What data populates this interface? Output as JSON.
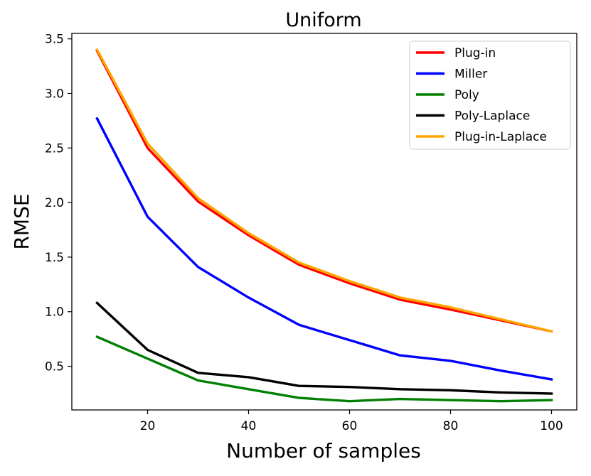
{
  "chart_data": {
    "type": "line",
    "title": "Uniform",
    "xlabel": "Number of samples",
    "ylabel": "RMSE",
    "x": [
      10,
      20,
      30,
      40,
      50,
      60,
      70,
      80,
      90,
      100
    ],
    "xlim": [
      5,
      105
    ],
    "ylim": [
      0.1,
      3.55
    ],
    "xticks": [
      20,
      40,
      60,
      80,
      100
    ],
    "yticks": [
      0.5,
      1.0,
      1.5,
      2.0,
      2.5,
      3.0,
      3.5
    ],
    "ytick_labels": [
      "0.5",
      "1.0",
      "1.5",
      "2.0",
      "2.5",
      "3.0",
      "3.5"
    ],
    "grid": false,
    "legend_position": "top-right",
    "series": [
      {
        "name": "Plug-in",
        "color": "#ff0000",
        "values": [
          3.39,
          2.5,
          2.01,
          1.7,
          1.43,
          1.26,
          1.11,
          1.02,
          0.92,
          0.82
        ]
      },
      {
        "name": "Miller",
        "color": "#0000ff",
        "values": [
          2.77,
          1.87,
          1.41,
          1.13,
          0.88,
          0.74,
          0.6,
          0.55,
          0.46,
          0.38
        ]
      },
      {
        "name": "Poly",
        "color": "#008000",
        "values": [
          0.77,
          0.57,
          0.37,
          0.29,
          0.21,
          0.18,
          0.2,
          0.19,
          0.18,
          0.19
        ]
      },
      {
        "name": "Poly-Laplace",
        "color": "#000000",
        "values": [
          1.08,
          0.65,
          0.44,
          0.4,
          0.32,
          0.31,
          0.29,
          0.28,
          0.26,
          0.25
        ]
      },
      {
        "name": "Plug-in-Laplace",
        "color": "#ffa500",
        "values": [
          3.4,
          2.54,
          2.04,
          1.72,
          1.45,
          1.28,
          1.13,
          1.04,
          0.93,
          0.82
        ]
      }
    ]
  }
}
